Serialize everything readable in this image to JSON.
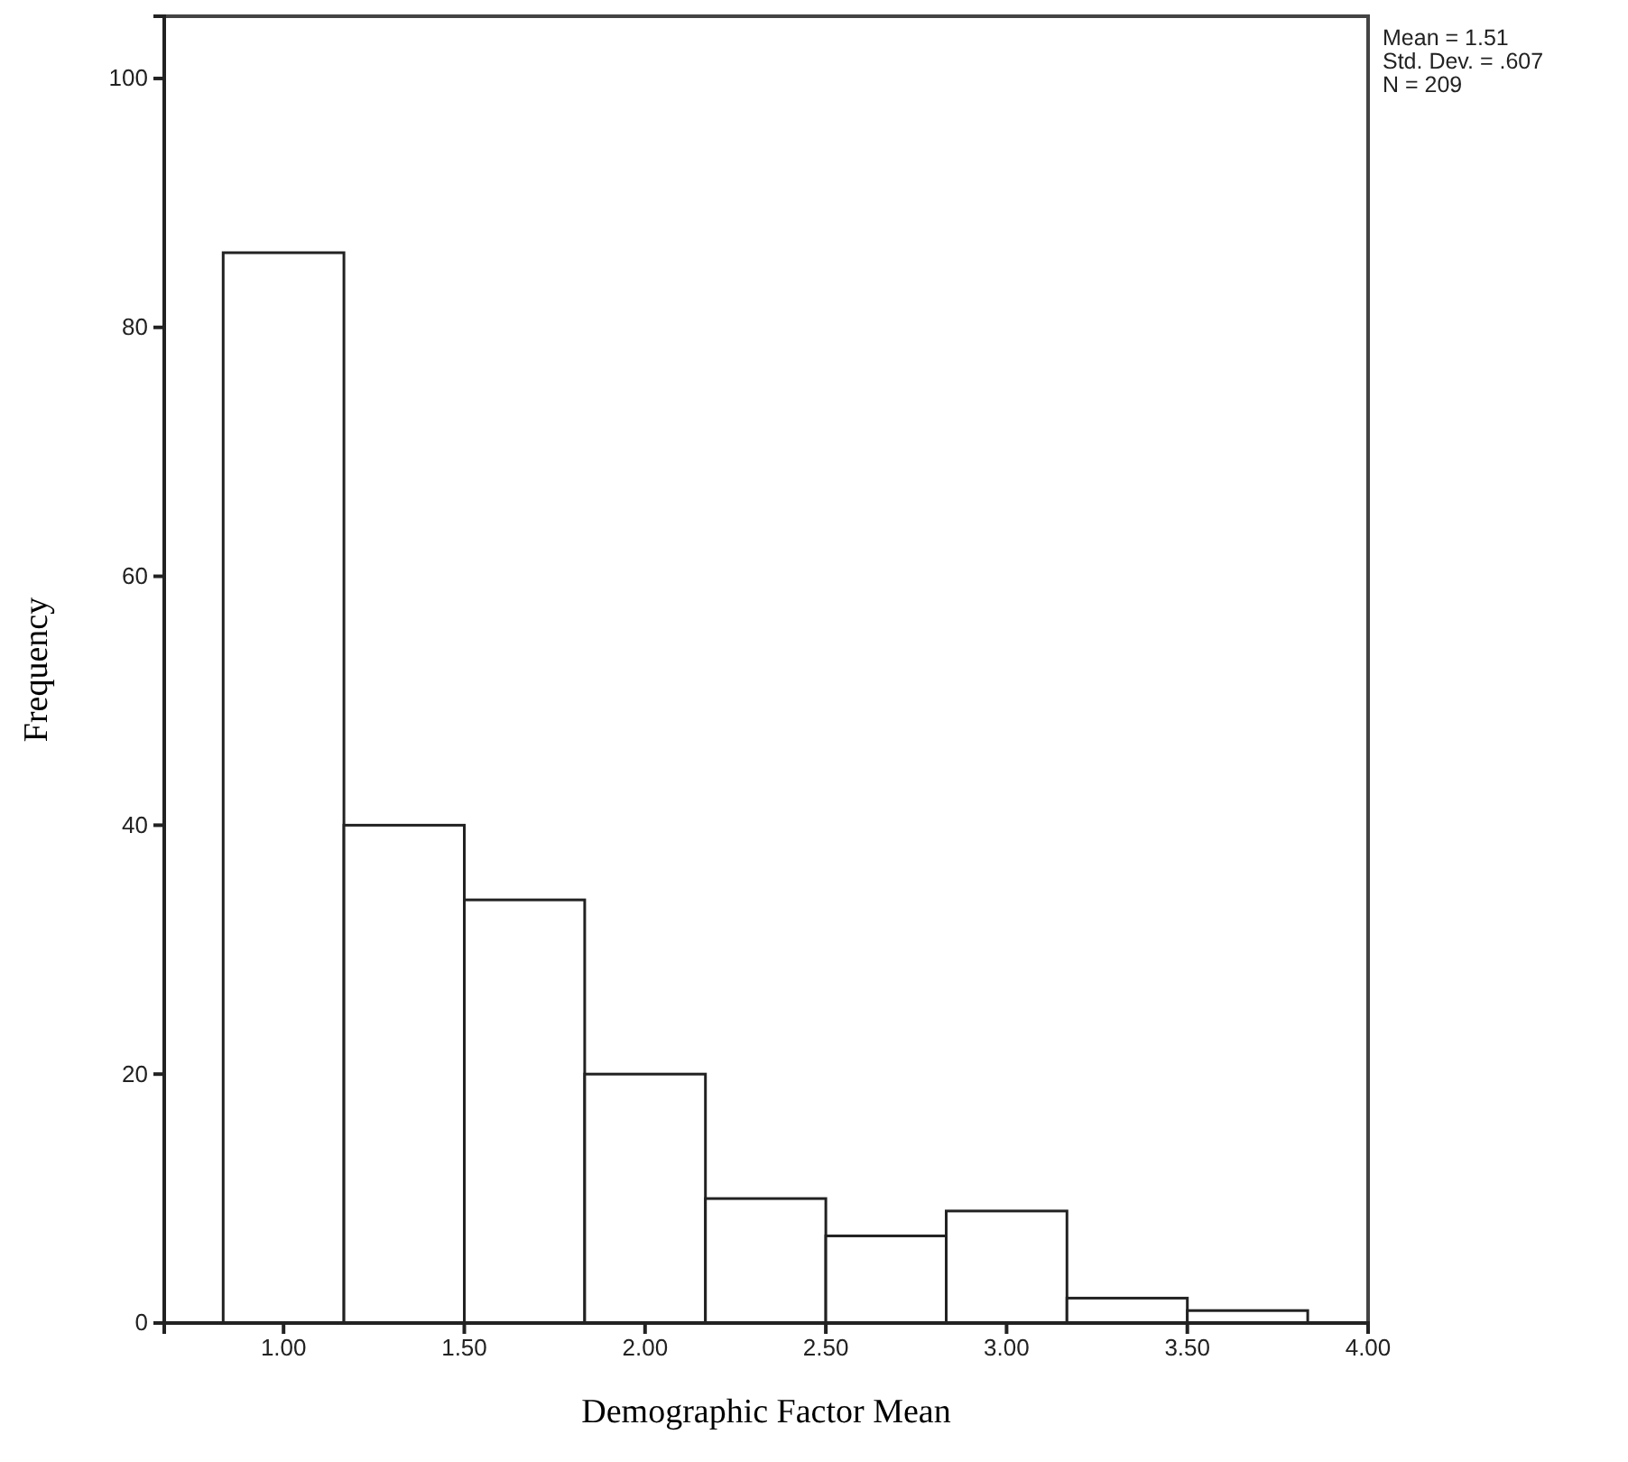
{
  "chart_data": {
    "type": "histogram",
    "xlabel": "Demographic Factor Mean",
    "ylabel": "Frequency",
    "bins": [
      0.833,
      1.167,
      1.5,
      1.833,
      2.167,
      2.5,
      2.833,
      3.167,
      3.5,
      3.833
    ],
    "values": [
      86,
      40,
      34,
      20,
      10,
      7,
      9,
      2,
      1
    ],
    "color": "#ffffff",
    "xlim": [
      0.67,
      4.0
    ],
    "ylim": [
      0,
      105
    ],
    "xticks": [
      {
        "value": 1,
        "label": "1.00"
      },
      {
        "value": 1.5,
        "label": "1.50"
      },
      {
        "value": 2,
        "label": "2.00"
      },
      {
        "value": 2.5,
        "label": "2.50"
      },
      {
        "value": 3,
        "label": "3.00"
      },
      {
        "value": 3.5,
        "label": "3.50"
      },
      {
        "value": 4,
        "label": "4.00"
      }
    ],
    "yticks": [
      0,
      20,
      40,
      60,
      80,
      100
    ],
    "grid": false,
    "annotations": [
      "Mean = 1.51",
      "Std. Dev. = .607",
      "N = 209"
    ]
  }
}
